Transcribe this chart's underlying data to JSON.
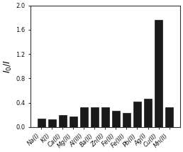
{
  "categories": [
    "Na(I)",
    "K(I)",
    "Ca(II)",
    "Mg(II)",
    "Al(III)",
    "Ba(II)",
    "Zn(II)",
    "Fe(II)",
    "Fe(III)",
    "Pb(II)",
    "Ag(I)",
    "Cu(II)",
    "Mn(II)"
  ],
  "values": [
    0.14,
    0.13,
    0.2,
    0.17,
    0.33,
    0.33,
    0.33,
    0.27,
    0.23,
    0.42,
    0.47,
    1.76,
    0.33
  ],
  "bar_color": "#1a1a1a",
  "ylabel": "$I_0/I$",
  "ylim": [
    0.0,
    2.0
  ],
  "yticks": [
    0.0,
    0.4,
    0.8,
    1.2,
    1.6,
    2.0
  ],
  "background_color": "#ffffff",
  "ylabel_fontsize": 9,
  "tick_fontsize": 6.0,
  "bar_width": 0.75
}
